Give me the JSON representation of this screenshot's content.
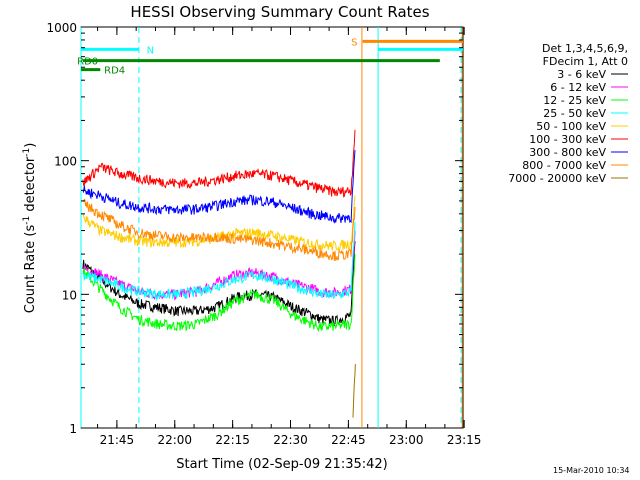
{
  "chart_data": {
    "type": "line",
    "title": "HESSI Observing Summary Count Rates",
    "xlabel": "Start Time (02-Sep-09 21:35:42)",
    "ylabel_main": "Count Rate (s",
    "ylabel_sup1": "-1",
    "ylabel_mid": " detector",
    "ylabel_sup2": "-1",
    "ylabel_end": ")",
    "yscale": "log",
    "ylim": [
      1,
      1000
    ],
    "xlim_minutes": [
      0,
      99
    ],
    "x_ticks": [
      {
        "label": "21:45",
        "min": 9.3
      },
      {
        "label": "22:00",
        "min": 24.3
      },
      {
        "label": "22:15",
        "min": 39.3
      },
      {
        "label": "22:30",
        "min": 54.3
      },
      {
        "label": "22:45",
        "min": 69.3
      },
      {
        "label": "23:00",
        "min": 84.3
      },
      {
        "label": "23:15",
        "min": 99.3
      }
    ],
    "y_ticks": [
      {
        "label": "1",
        "value": 1
      },
      {
        "label": "10",
        "value": 10
      },
      {
        "label": "100",
        "value": 100
      },
      {
        "label": "1000",
        "value": 1000
      }
    ],
    "legend_header": [
      "Det 1,3,4,5,6,9,",
      "FDecim 1, Att 0"
    ],
    "series": [
      {
        "name": "3 - 6 keV",
        "color": "#000000",
        "points": [
          [
            0.5,
            17
          ],
          [
            5,
            13
          ],
          [
            10,
            10
          ],
          [
            15,
            8.5
          ],
          [
            20,
            8
          ],
          [
            25,
            7.5
          ],
          [
            30,
            7.5
          ],
          [
            35,
            8
          ],
          [
            40,
            9.5
          ],
          [
            45,
            10
          ],
          [
            50,
            9.5
          ],
          [
            55,
            8
          ],
          [
            60,
            7
          ],
          [
            62,
            6.5
          ],
          [
            66,
            6.3
          ],
          [
            70,
            7
          ],
          [
            71,
            25
          ]
        ]
      },
      {
        "name": "6 - 12 keV",
        "color": "#ff00ff",
        "points": [
          [
            0.5,
            16
          ],
          [
            5,
            14
          ],
          [
            10,
            12
          ],
          [
            15,
            10.5
          ],
          [
            20,
            10
          ],
          [
            25,
            10
          ],
          [
            30,
            10.5
          ],
          [
            35,
            12
          ],
          [
            40,
            14
          ],
          [
            45,
            14.5
          ],
          [
            50,
            13.5
          ],
          [
            55,
            12
          ],
          [
            60,
            11
          ],
          [
            62,
            10.5
          ],
          [
            66,
            10.3
          ],
          [
            70,
            11
          ],
          [
            71,
            30
          ]
        ]
      },
      {
        "name": "12 - 25 keV",
        "color": "#00ff00",
        "points": [
          [
            0.5,
            15
          ],
          [
            5,
            11
          ],
          [
            10,
            8
          ],
          [
            15,
            6.5
          ],
          [
            20,
            6
          ],
          [
            25,
            5.8
          ],
          [
            30,
            6
          ],
          [
            35,
            7
          ],
          [
            40,
            9
          ],
          [
            45,
            10
          ],
          [
            50,
            9
          ],
          [
            55,
            7
          ],
          [
            60,
            6
          ],
          [
            62,
            5.7
          ],
          [
            66,
            5.8
          ],
          [
            70,
            6
          ],
          [
            71,
            20
          ]
        ]
      },
      {
        "name": "25 - 50 keV",
        "color": "#00ffff",
        "points": [
          [
            0.5,
            14
          ],
          [
            5,
            13
          ],
          [
            10,
            11.5
          ],
          [
            15,
            10.5
          ],
          [
            20,
            10
          ],
          [
            25,
            10
          ],
          [
            30,
            10.5
          ],
          [
            35,
            11.5
          ],
          [
            40,
            13
          ],
          [
            45,
            14
          ],
          [
            50,
            13
          ],
          [
            55,
            11.5
          ],
          [
            60,
            10.5
          ],
          [
            62,
            10
          ],
          [
            66,
            9.8
          ],
          [
            70,
            10.5
          ],
          [
            71,
            35
          ]
        ]
      },
      {
        "name": "50 - 100 keV",
        "color": "#ffcc00",
        "points": [
          [
            0.5,
            38
          ],
          [
            5,
            30
          ],
          [
            10,
            27
          ],
          [
            15,
            25
          ],
          [
            20,
            24.5
          ],
          [
            25,
            24.5
          ],
          [
            30,
            25
          ],
          [
            35,
            26.5
          ],
          [
            40,
            28.5
          ],
          [
            45,
            29
          ],
          [
            50,
            27.5
          ],
          [
            55,
            25.5
          ],
          [
            60,
            24
          ],
          [
            62,
            23.5
          ],
          [
            66,
            23
          ],
          [
            70,
            24
          ],
          [
            71,
            55
          ]
        ]
      },
      {
        "name": "100 - 300 keV",
        "color": "#ff0000",
        "points": [
          [
            0.5,
            68
          ],
          [
            5,
            90
          ],
          [
            10,
            80
          ],
          [
            15,
            74
          ],
          [
            20,
            70
          ],
          [
            25,
            68
          ],
          [
            30,
            68
          ],
          [
            35,
            72
          ],
          [
            40,
            77
          ],
          [
            45,
            80
          ],
          [
            50,
            77
          ],
          [
            55,
            70
          ],
          [
            60,
            64
          ],
          [
            62,
            62
          ],
          [
            66,
            58
          ],
          [
            70,
            60
          ],
          [
            71,
            170
          ]
        ]
      },
      {
        "name": "300 - 800 keV",
        "color": "#0000ff",
        "points": [
          [
            0.5,
            60
          ],
          [
            5,
            55
          ],
          [
            10,
            48
          ],
          [
            15,
            45
          ],
          [
            20,
            43.5
          ],
          [
            25,
            43
          ],
          [
            30,
            43.5
          ],
          [
            35,
            46
          ],
          [
            40,
            50
          ],
          [
            45,
            51
          ],
          [
            50,
            49
          ],
          [
            55,
            44
          ],
          [
            60,
            40
          ],
          [
            62,
            39
          ],
          [
            66,
            37
          ],
          [
            70,
            38
          ],
          [
            71,
            120
          ]
        ]
      },
      {
        "name": "800 - 7000 keV",
        "color": "#ff8800",
        "points": [
          [
            0.5,
            48
          ],
          [
            5,
            40
          ],
          [
            10,
            33
          ],
          [
            15,
            29
          ],
          [
            20,
            27.5
          ],
          [
            25,
            26.5
          ],
          [
            30,
            26.5
          ],
          [
            35,
            27
          ],
          [
            40,
            26
          ],
          [
            45,
            25.5
          ],
          [
            50,
            24
          ],
          [
            55,
            22.5
          ],
          [
            60,
            21
          ],
          [
            62,
            20.5
          ],
          [
            66,
            19.5
          ],
          [
            70,
            20
          ],
          [
            71,
            45
          ]
        ]
      },
      {
        "name": "7000 - 20000 keV",
        "color": "#997700",
        "points": [
          [
            70.5,
            1.3
          ],
          [
            71,
            2.5
          ],
          [
            71.2,
            3
          ]
        ]
      }
    ],
    "annotations": [
      {
        "text": "RD0",
        "color": "#008800",
        "x_min": -1,
        "bar_from": 0.5,
        "bar_to": 93,
        "y": 560
      },
      {
        "text": "RD4",
        "color": "#008800",
        "x_min": 6,
        "bar_from": 0,
        "bar_to": 5,
        "y": 480
      },
      {
        "text": "N",
        "color": "#00ffff",
        "x_min": 17,
        "bar_from": 0,
        "bar_to": 15,
        "y": 680
      },
      {
        "text": "S",
        "color": "#ff8800",
        "x_min": 70,
        "bar_from": 73,
        "bar_to": 99,
        "y": 780
      }
    ],
    "cyan_bar_right": {
      "from": 77,
      "to": 99,
      "y": 680
    },
    "vlines": [
      {
        "x": 0,
        "color": "#00ffff",
        "dash": false
      },
      {
        "x": 15,
        "color": "#00ffff",
        "dash": true
      },
      {
        "x": 72.8,
        "color": "#ff8800",
        "dash": false
      },
      {
        "x": 77,
        "color": "#00ffff",
        "dash": false
      },
      {
        "x": 98.5,
        "color": "#00ffff",
        "dash": true
      },
      {
        "x": 98.8,
        "color": "#ff8800",
        "dash": false
      }
    ]
  },
  "footer": {
    "timestamp": "15-Mar-2010 10:34"
  }
}
